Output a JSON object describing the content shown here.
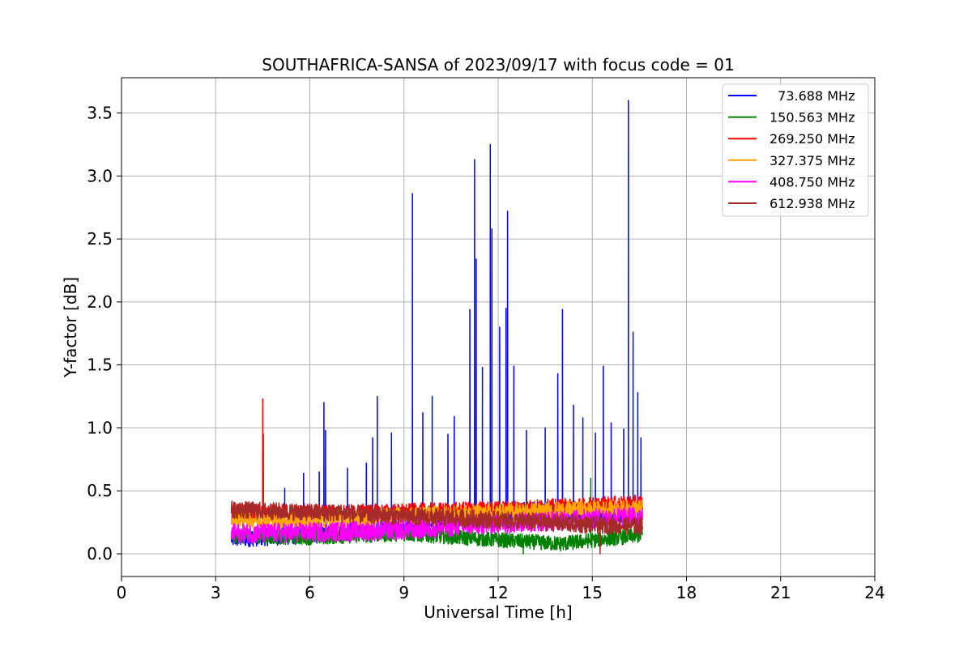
{
  "chart_data": {
    "type": "line",
    "title": "SOUTHAFRICA-SANSA of 2023/09/17 with focus code = 01",
    "xlabel": "Universal Time [h]",
    "ylabel": "Y-factor [dB]",
    "xlim": [
      0,
      24
    ],
    "ylim": [
      -0.18,
      3.78
    ],
    "xticks": [
      0,
      3,
      6,
      9,
      12,
      15,
      18,
      21,
      24
    ],
    "xtick_labels": [
      "0",
      "3",
      "6",
      "9",
      "12",
      "15",
      "18",
      "21",
      "24"
    ],
    "yticks": [
      0.0,
      0.5,
      1.0,
      1.5,
      2.0,
      2.5,
      3.0,
      3.5
    ],
    "ytick_labels": [
      "0.0",
      "0.5",
      "1.0",
      "1.5",
      "2.0",
      "2.5",
      "3.0",
      "3.5"
    ],
    "grid": true,
    "legend_position": "top-right",
    "series": [
      {
        "name": "  73.688 MHz",
        "color": "#0000ff",
        "x_range": [
          3.5,
          16.6
        ],
        "baseline": [
          [
            3.5,
            0.12
          ],
          [
            6,
            0.15
          ],
          [
            9,
            0.22
          ],
          [
            11,
            0.3
          ],
          [
            13,
            0.35
          ],
          [
            15,
            0.33
          ],
          [
            16.6,
            0.3
          ]
        ],
        "noise": 0.07,
        "spikes": [
          [
            4.5,
            0.42
          ],
          [
            5.2,
            0.52
          ],
          [
            5.8,
            0.64
          ],
          [
            6.3,
            0.65
          ],
          [
            6.45,
            1.2
          ],
          [
            6.5,
            0.98
          ],
          [
            7.2,
            0.68
          ],
          [
            7.8,
            0.72
          ],
          [
            8.0,
            0.92
          ],
          [
            8.15,
            1.25
          ],
          [
            8.6,
            0.96
          ],
          [
            9.27,
            2.86
          ],
          [
            9.6,
            1.12
          ],
          [
            9.9,
            1.25
          ],
          [
            10.4,
            0.95
          ],
          [
            10.6,
            1.09
          ],
          [
            11.1,
            1.94
          ],
          [
            11.25,
            3.13
          ],
          [
            11.3,
            2.34
          ],
          [
            11.5,
            1.48
          ],
          [
            11.75,
            3.25
          ],
          [
            11.8,
            2.58
          ],
          [
            12.05,
            1.8
          ],
          [
            12.3,
            2.72
          ],
          [
            12.25,
            1.95
          ],
          [
            12.5,
            1.49
          ],
          [
            12.9,
            0.98
          ],
          [
            13.5,
            1.0
          ],
          [
            13.9,
            1.43
          ],
          [
            14.05,
            1.94
          ],
          [
            14.4,
            1.18
          ],
          [
            14.7,
            1.08
          ],
          [
            15.1,
            0.96
          ],
          [
            15.35,
            1.49
          ],
          [
            15.6,
            1.04
          ],
          [
            16.0,
            0.99
          ],
          [
            16.15,
            3.6
          ],
          [
            16.3,
            1.76
          ],
          [
            16.45,
            1.28
          ],
          [
            16.55,
            0.92
          ]
        ]
      },
      {
        "name": "150.563 MHz",
        "color": "#008000",
        "x_range": [
          3.5,
          16.6
        ],
        "baseline": [
          [
            3.5,
            0.14
          ],
          [
            6,
            0.13
          ],
          [
            9,
            0.16
          ],
          [
            12,
            0.11
          ],
          [
            14,
            0.08
          ],
          [
            16.6,
            0.15
          ]
        ],
        "noise": 0.06,
        "spikes": [
          [
            12.8,
            0.0
          ],
          [
            14.95,
            0.6
          ]
        ]
      },
      {
        "name": "269.250 MHz",
        "color": "#ff0000",
        "x_range": [
          3.5,
          16.6
        ],
        "baseline": [
          [
            3.5,
            0.33
          ],
          [
            6,
            0.32
          ],
          [
            9,
            0.33
          ],
          [
            12,
            0.35
          ],
          [
            15,
            0.38
          ],
          [
            16.6,
            0.4
          ]
        ],
        "noise": 0.07,
        "spikes": [
          [
            4.5,
            1.23
          ],
          [
            4.52,
            0.95
          ]
        ]
      },
      {
        "name": "327.375 MHz",
        "color": "#ffa500",
        "x_range": [
          3.5,
          16.6
        ],
        "baseline": [
          [
            3.5,
            0.28
          ],
          [
            6,
            0.27
          ],
          [
            9,
            0.3
          ],
          [
            12,
            0.33
          ],
          [
            15,
            0.35
          ],
          [
            16.6,
            0.36
          ]
        ],
        "noise": 0.07,
        "spikes": []
      },
      {
        "name": "408.750 MHz",
        "color": "#ff00ff",
        "x_range": [
          3.5,
          16.6
        ],
        "baseline": [
          [
            3.5,
            0.16
          ],
          [
            6,
            0.17
          ],
          [
            9,
            0.19
          ],
          [
            12,
            0.24
          ],
          [
            15,
            0.28
          ],
          [
            16.6,
            0.3
          ]
        ],
        "noise": 0.08,
        "spikes": []
      },
      {
        "name": "612.938 MHz",
        "color": "#a52a2a",
        "x_range": [
          3.5,
          16.6
        ],
        "baseline": [
          [
            3.5,
            0.35
          ],
          [
            6,
            0.33
          ],
          [
            9,
            0.3
          ],
          [
            12,
            0.27
          ],
          [
            15,
            0.23
          ],
          [
            16.6,
            0.22
          ]
        ],
        "noise": 0.07,
        "spikes": [
          [
            15.25,
            0.0
          ]
        ]
      }
    ]
  }
}
